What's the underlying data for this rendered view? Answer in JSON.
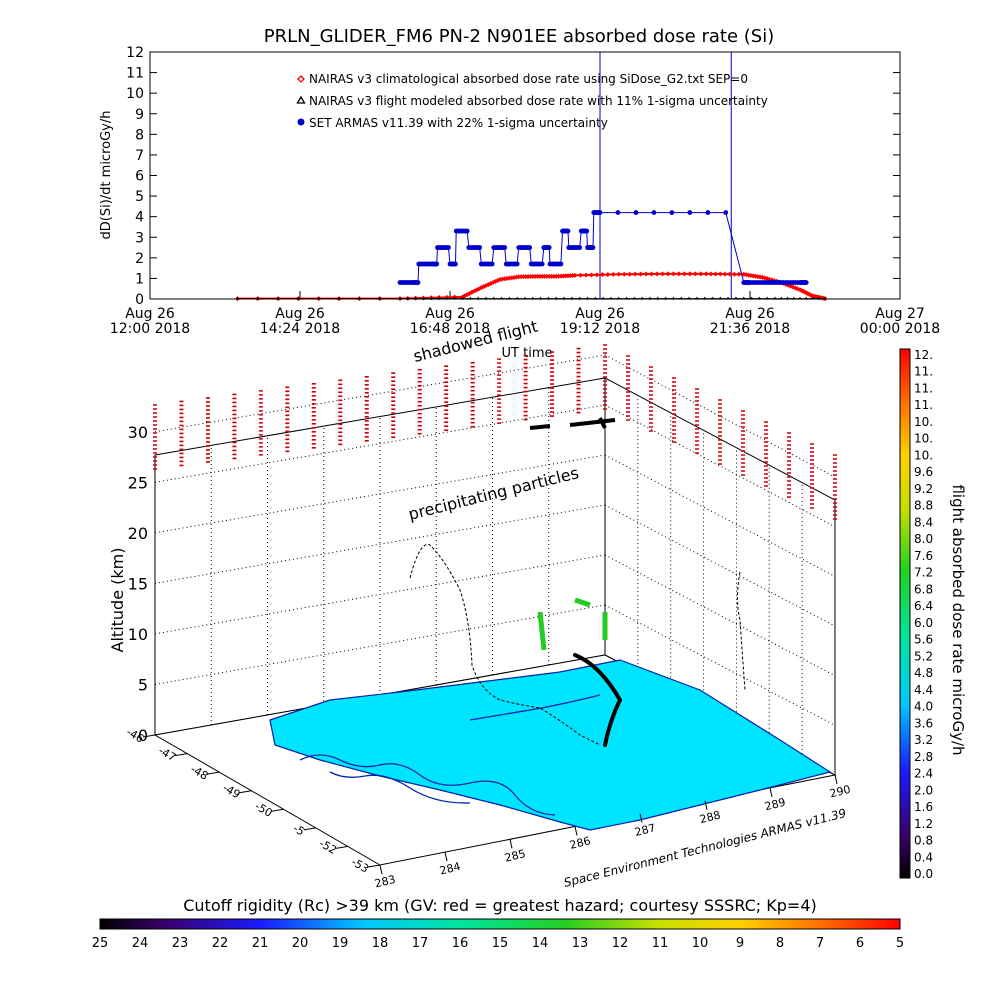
{
  "chart_data": [
    {
      "type": "line",
      "title": "PRLN_GLIDER_FM6 PN-2 N901EE absorbed dose rate (Si)",
      "ylabel": "dD(Si)/dt microGy/h",
      "xlabel": "UT time",
      "ylim": [
        0,
        12
      ],
      "yticks": [
        "0",
        "1",
        "2",
        "3",
        "4",
        "5",
        "6",
        "7",
        "8",
        "9",
        "10",
        "11",
        "12"
      ],
      "xlim_hours": [
        12,
        24
      ],
      "xticks": [
        {
          "hour": 12.0,
          "line1": "Aug 26",
          "line2": "12:00 2018"
        },
        {
          "hour": 14.4,
          "line1": "Aug 26",
          "line2": "14:24 2018"
        },
        {
          "hour": 16.8,
          "line1": "Aug 26",
          "line2": "16:48 2018"
        },
        {
          "hour": 19.2,
          "line1": "Aug 26",
          "line2": "19:12 2018"
        },
        {
          "hour": 21.6,
          "line1": "Aug 26",
          "line2": "21:36 2018"
        },
        {
          "hour": 24.0,
          "line1": "Aug 27",
          "line2": "00:00 2018"
        }
      ],
      "legend_position": "top-center",
      "series": [
        {
          "name": "NAIRAS v3 climatological absorbed dose rate using SiDose_G2.txt SEP=0",
          "color": "#ff0000",
          "marker": "diamond",
          "x_hours": [
            13.4,
            16.0,
            17.0,
            17.3,
            17.6,
            17.9,
            18.2,
            18.5,
            18.8,
            19.5,
            20.2,
            20.9,
            21.5,
            21.8,
            22.1,
            22.4,
            22.6,
            22.8
          ],
          "values": [
            0.02,
            0.02,
            0.1,
            0.55,
            0.95,
            1.08,
            1.1,
            1.1,
            1.15,
            1.2,
            1.22,
            1.22,
            1.2,
            1.05,
            0.8,
            0.45,
            0.15,
            0.02
          ]
        },
        {
          "name": "NAIRAS v3 flight modeled absorbed dose rate with 11% 1-sigma uncertainty",
          "color": "#000000",
          "marker": "triangle",
          "x_hours": [
            13.4,
            16.0,
            17.0,
            18.0,
            19.0,
            20.0,
            21.0,
            22.0,
            22.8
          ],
          "values": [
            0.02,
            0.02,
            0.02,
            0.02,
            0.02,
            0.02,
            0.02,
            0.02,
            0.02
          ]
        },
        {
          "name": "SET ARMAS v11.39 with 22% 1-sigma uncertainty",
          "color": "#0000cc",
          "marker": "circle",
          "x_hours": [
            16.0,
            16.2,
            16.3,
            16.5,
            16.6,
            16.8,
            16.9,
            17.1,
            17.3,
            17.5,
            17.7,
            17.9,
            18.1,
            18.3,
            18.4,
            18.6,
            18.7,
            18.9,
            19.0,
            19.1,
            19.2,
            21.5,
            21.6,
            21.9,
            22.1,
            22.4,
            22.5
          ],
          "values": [
            0.8,
            0.8,
            1.7,
            1.7,
            2.5,
            1.7,
            3.3,
            2.5,
            1.7,
            2.5,
            1.7,
            2.5,
            1.7,
            2.5,
            1.7,
            3.3,
            2.5,
            3.3,
            2.5,
            4.2,
            4.2,
            0.8,
            0.8,
            0.8,
            0.8,
            0.8,
            0.8
          ]
        }
      ],
      "spikes_hours": [
        19.2,
        21.3
      ]
    },
    {
      "type": "scatter",
      "subtype": "3d-flight-track",
      "zlabel": "Altitude (km)",
      "zticks": [
        "0",
        "5",
        "10",
        "15",
        "20",
        "25",
        "30"
      ],
      "lat_ticks": [
        "-46",
        "-47",
        "-48",
        "-49",
        "-50",
        "-5",
        "-52",
        "-53"
      ],
      "lon_ticks": [
        "283",
        "284",
        "285",
        "286",
        "287",
        "288",
        "289",
        "290"
      ],
      "annotations": [
        "shadowed flight",
        "precipitating particles"
      ],
      "credit": "Space Environment Technologies ARMAS v11.39",
      "surface_color": "#00e5ff"
    },
    {
      "type": "heatmap",
      "subtype": "colorbar-vertical",
      "label": "flight absorbed dose rate microGy/h",
      "ticks": [
        "12.",
        "11.",
        "11.",
        "11.",
        "10.",
        "10.",
        "10.",
        "9.6",
        "9.2",
        "8.8",
        "8.4",
        "8.0",
        "7.6",
        "7.2",
        "6.8",
        "6.4",
        "6.0",
        "5.6",
        "5.2",
        "4.8",
        "4.4",
        "4.0",
        "3.6",
        "3.2",
        "2.8",
        "2.4",
        "2.0",
        "1.6",
        "1.2",
        "0.8",
        "0.4",
        "0.0"
      ],
      "range": [
        0,
        12
      ]
    },
    {
      "type": "heatmap",
      "subtype": "colorbar-horizontal",
      "label": "Cutoff rigidity (Rc) >39 km (GV: red = greatest hazard; courtesy SSSRC; Kp=4)",
      "ticks": [
        "25",
        "24",
        "23",
        "22",
        "21",
        "20",
        "19",
        "18",
        "17",
        "16",
        "15",
        "14",
        "13",
        "12",
        "11",
        "10",
        "9",
        "8",
        "7",
        "6",
        "5"
      ],
      "range": [
        25,
        5
      ]
    }
  ]
}
